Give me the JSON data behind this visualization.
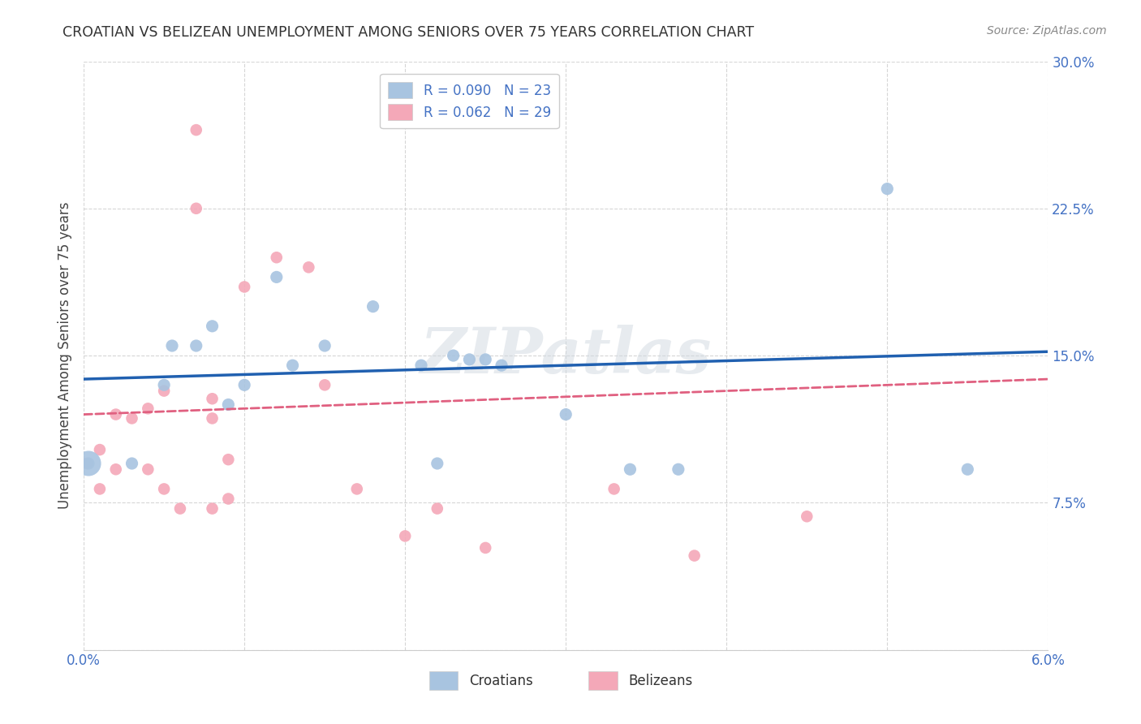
{
  "title": "CROATIAN VS BELIZEAN UNEMPLOYMENT AMONG SENIORS OVER 75 YEARS CORRELATION CHART",
  "source": "Source: ZipAtlas.com",
  "ylabel": "Unemployment Among Seniors over 75 years",
  "xlabel_croatians": "Croatians",
  "xlabel_belizeans": "Belizeans",
  "xlim": [
    0.0,
    0.06
  ],
  "ylim": [
    0.0,
    0.3
  ],
  "xticks": [
    0.0,
    0.01,
    0.02,
    0.03,
    0.04,
    0.05,
    0.06
  ],
  "xticklabels": [
    "0.0%",
    "",
    "",
    "",
    "",
    "",
    "6.0%"
  ],
  "yticks": [
    0.0,
    0.075,
    0.15,
    0.225,
    0.3
  ],
  "yticklabels": [
    "",
    "7.5%",
    "15.0%",
    "22.5%",
    "30.0%"
  ],
  "croatian_R": 0.09,
  "croatian_N": 23,
  "belizean_R": 0.062,
  "belizean_N": 29,
  "croatian_color": "#a8c4e0",
  "belizean_color": "#f4a8b8",
  "croatian_line_color": "#2060b0",
  "belizean_line_color": "#e06080",
  "croatian_x": [
    0.0003,
    0.003,
    0.005,
    0.0055,
    0.007,
    0.008,
    0.009,
    0.01,
    0.012,
    0.013,
    0.015,
    0.018,
    0.021,
    0.022,
    0.023,
    0.024,
    0.025,
    0.026,
    0.03,
    0.034,
    0.037,
    0.05,
    0.055
  ],
  "croatian_y": [
    0.095,
    0.095,
    0.135,
    0.155,
    0.155,
    0.165,
    0.125,
    0.135,
    0.19,
    0.145,
    0.155,
    0.175,
    0.145,
    0.095,
    0.15,
    0.148,
    0.148,
    0.145,
    0.12,
    0.092,
    0.092,
    0.235,
    0.092
  ],
  "belizean_x": [
    0.0002,
    0.001,
    0.001,
    0.002,
    0.002,
    0.003,
    0.004,
    0.004,
    0.005,
    0.005,
    0.006,
    0.007,
    0.007,
    0.008,
    0.008,
    0.008,
    0.009,
    0.009,
    0.01,
    0.012,
    0.014,
    0.015,
    0.017,
    0.02,
    0.022,
    0.025,
    0.033,
    0.038,
    0.045
  ],
  "belizean_y": [
    0.095,
    0.082,
    0.102,
    0.12,
    0.092,
    0.118,
    0.123,
    0.092,
    0.082,
    0.132,
    0.072,
    0.265,
    0.225,
    0.128,
    0.118,
    0.072,
    0.097,
    0.077,
    0.185,
    0.2,
    0.195,
    0.135,
    0.082,
    0.058,
    0.072,
    0.052,
    0.082,
    0.048,
    0.068
  ],
  "watermark": "ZIPatlas",
  "background_color": "#ffffff",
  "grid_color": "#cccccc",
  "croatian_line_x": [
    0.0,
    0.06
  ],
  "croatian_line_y": [
    0.138,
    0.152
  ],
  "belizean_line_x": [
    0.0,
    0.06
  ],
  "belizean_line_y": [
    0.12,
    0.138
  ],
  "large_point_croatian_idx": 0,
  "large_point_size": 500
}
